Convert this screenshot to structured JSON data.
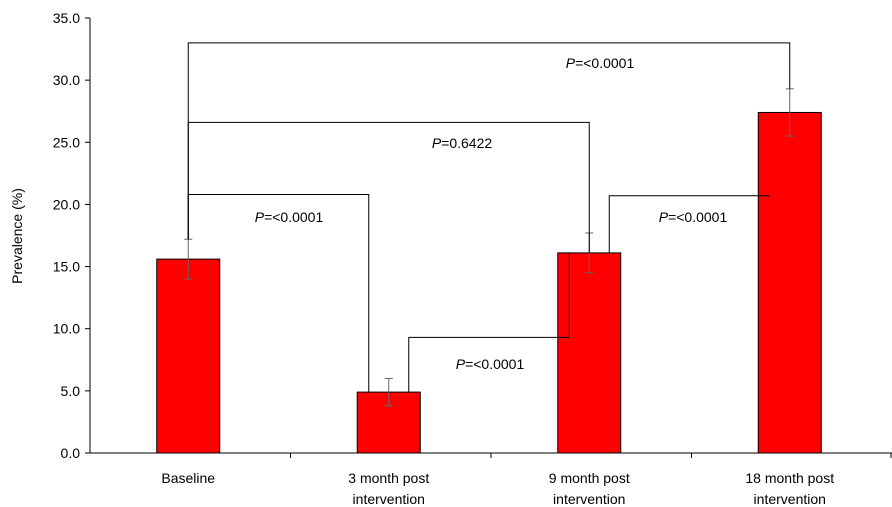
{
  "chart_data": {
    "type": "bar",
    "categories": [
      [
        "Baseline"
      ],
      [
        "3 month post",
        "intervention"
      ],
      [
        "9 month post",
        "intervention"
      ],
      [
        "18 month post",
        "intervention"
      ]
    ],
    "values": [
      15.6,
      4.9,
      16.1,
      27.4
    ],
    "errors": [
      1.6,
      1.1,
      1.6,
      1.9
    ],
    "ylabel": "Prevalence (%)",
    "ylim": [
      0,
      35
    ],
    "yticks": [
      "0.0",
      "5.0",
      "10.0",
      "15.0",
      "20.0",
      "25.0",
      "30.0",
      "35.0"
    ],
    "bar_color": "#ff0000",
    "grid": false,
    "comparisons": [
      {
        "from": 0,
        "to": 3,
        "level": 33.0,
        "p_prefix": "P",
        "p_text": "=<0.0001"
      },
      {
        "from": 0,
        "to": 2,
        "level": 26.6,
        "p_prefix": "P",
        "p_text": "=0.6422"
      },
      {
        "from": 0,
        "to": 1,
        "level": 20.8,
        "p_prefix": "P",
        "p_text": "=<0.0001"
      },
      {
        "from": 1,
        "to": 2,
        "level": 9.3,
        "p_prefix": "P",
        "p_text": "=<0.0001"
      },
      {
        "from": 2,
        "to": 3,
        "level": 20.7,
        "p_prefix": "P",
        "p_text": "=<0.0001"
      }
    ]
  }
}
